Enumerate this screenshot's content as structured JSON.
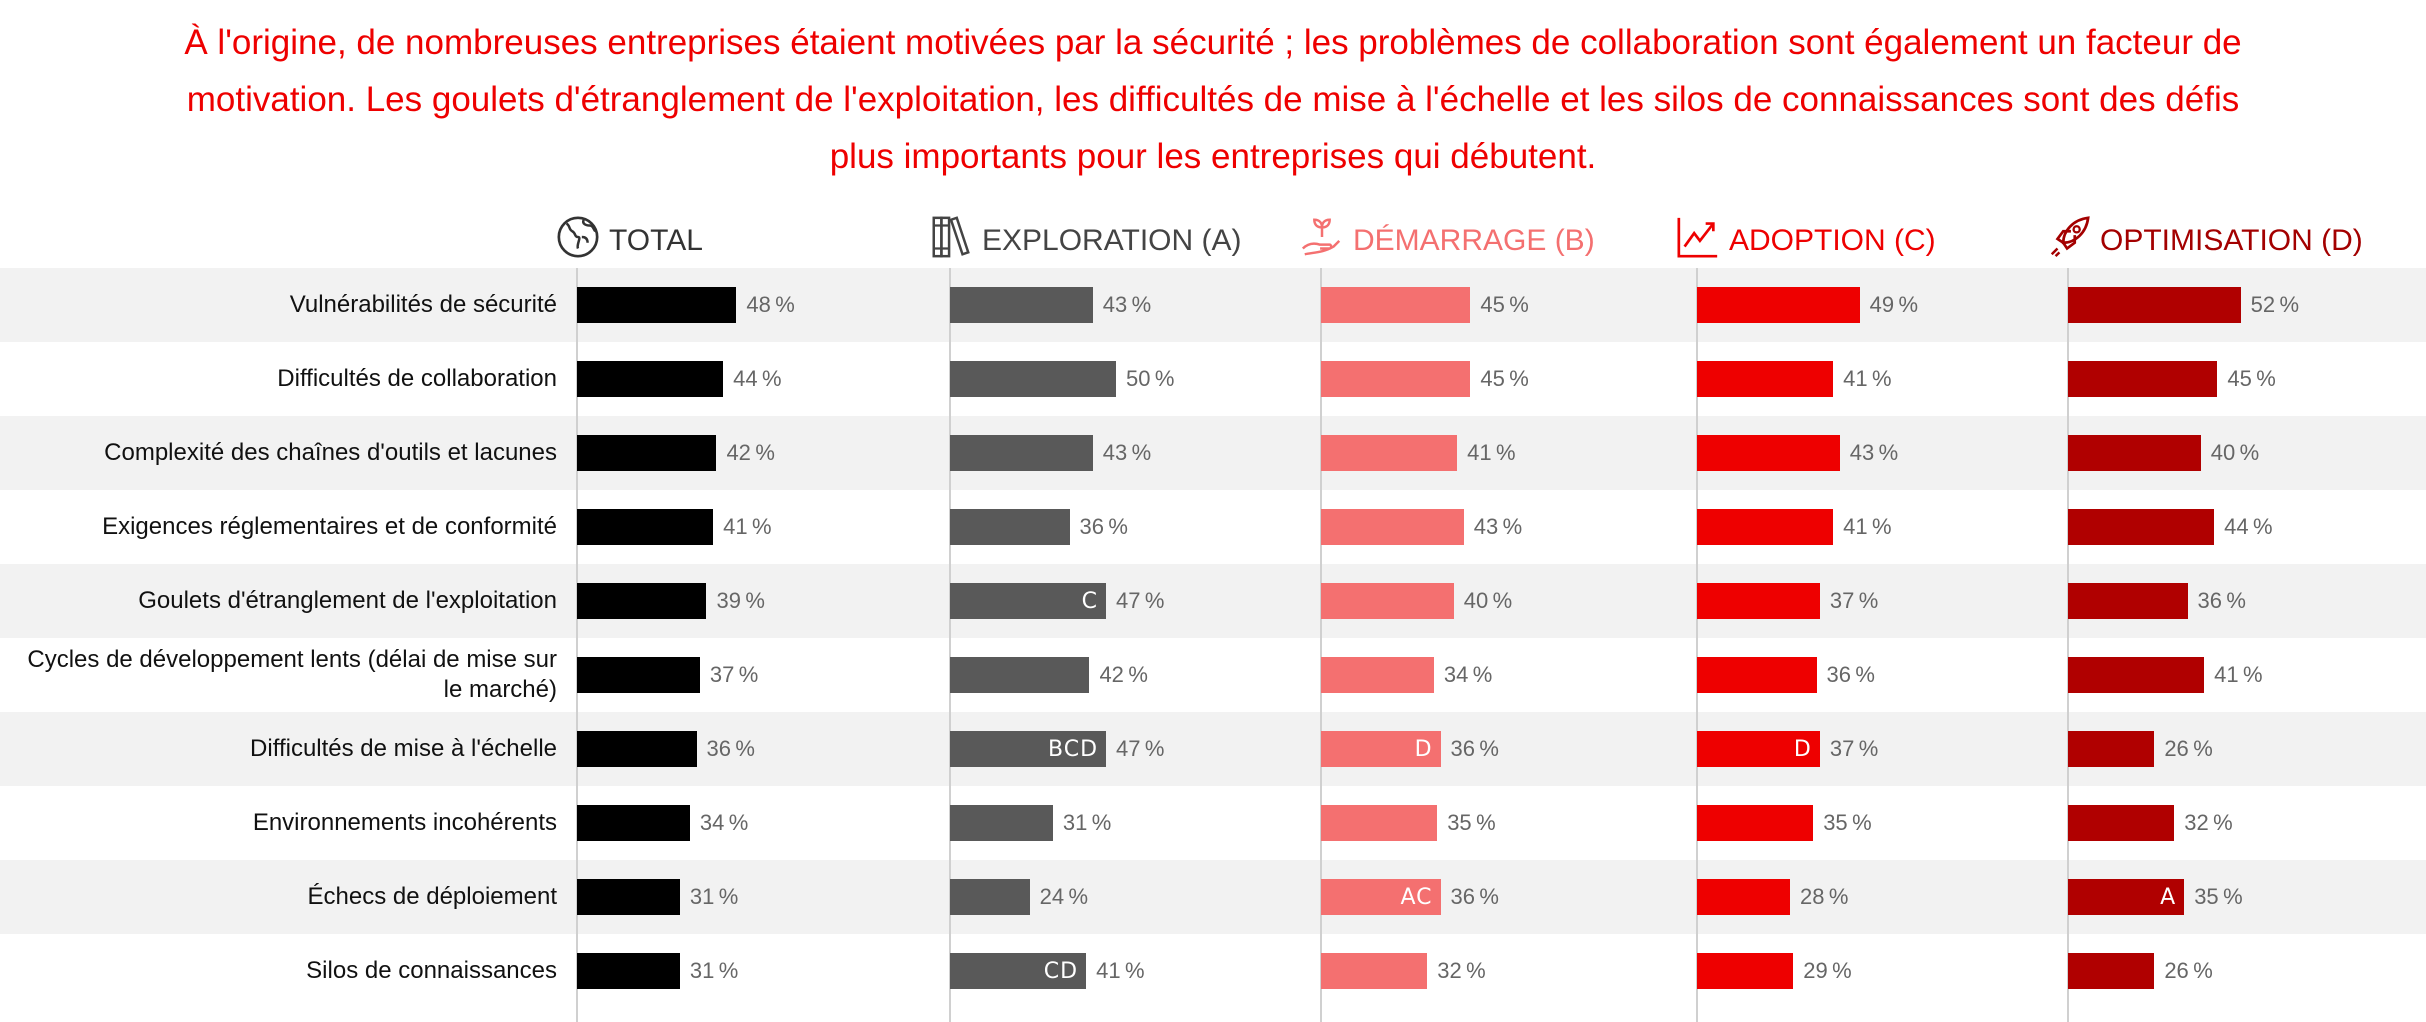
{
  "title": [
    "À l'origine, de nombreuses entreprises étaient motivées par la sécurité ; les problèmes de collaboration sont également un facteur de",
    "motivation. Les goulets d'étranglement de l'exploitation, les difficultés de mise à l'échelle et les silos de connaissances sont des défis",
    "plus importants pour les entreprises qui débutent."
  ],
  "chart_data": {
    "type": "bar",
    "orientation": "horizontal",
    "title": "À l'origine, de nombreuses entreprises étaient motivées par la sécurité ; les problèmes de collaboration sont également un facteur de motivation. Les goulets d'étranglement de l'exploitation, les difficultés de mise à l'échelle et les silos de connaissances sont des défis plus importants pour les entreprises qui débutent.",
    "unit": "%",
    "categories": [
      "Vulnérabilités de sécurité",
      "Difficultés de collaboration",
      "Complexité des chaînes d'outils et lacunes",
      "Exigences réglementaires et de conformité",
      "Goulets d'étranglement de l'exploitation",
      "Cycles de développement lents (délai de mise sur le marché)",
      "Difficultés de mise à l'échelle",
      "Environnements incohérents",
      "Échecs de déploiement",
      "Silos de connaissances"
    ],
    "series": [
      {
        "name": "TOTAL",
        "icon": "globe-icon",
        "color": "#000000",
        "header_color": "#333333",
        "values": [
          48,
          44,
          42,
          41,
          39,
          37,
          36,
          34,
          31,
          31
        ],
        "sig": [
          "",
          "",
          "",
          "",
          "",
          "",
          "",
          "",
          "",
          ""
        ]
      },
      {
        "name": "EXPLORATION (A)",
        "icon": "books-icon",
        "color": "#595959",
        "header_color": "#444444",
        "values": [
          43,
          50,
          43,
          36,
          47,
          42,
          47,
          31,
          24,
          41
        ],
        "sig": [
          "",
          "",
          "",
          "",
          "C",
          "",
          "BCD",
          "",
          "",
          "CD"
        ]
      },
      {
        "name": "DÉMARRAGE (B)",
        "icon": "seedling-hand-icon",
        "color": "#f47070",
        "header_color": "#f47070",
        "values": [
          45,
          45,
          41,
          43,
          40,
          34,
          36,
          35,
          36,
          32
        ],
        "sig": [
          "",
          "",
          "",
          "",
          "",
          "",
          "D",
          "",
          "AC",
          ""
        ]
      },
      {
        "name": "ADOPTION (C)",
        "icon": "growth-chart-icon",
        "color": "#ee0000",
        "header_color": "#ee0000",
        "values": [
          49,
          41,
          43,
          41,
          37,
          36,
          37,
          35,
          28,
          29
        ],
        "sig": [
          "",
          "",
          "",
          "",
          "",
          "",
          "D",
          "",
          "",
          ""
        ]
      },
      {
        "name": "OPTIMISATION (D)",
        "icon": "rocket-icon",
        "color": "#b00000",
        "header_color": "#a30000",
        "values": [
          52,
          45,
          40,
          44,
          36,
          41,
          26,
          32,
          35,
          26
        ],
        "sig": [
          "",
          "",
          "",
          "",
          "",
          "",
          "",
          "",
          "A",
          ""
        ]
      }
    ],
    "xlim": [
      0,
      100
    ],
    "grid": false,
    "legend": "none"
  }
}
